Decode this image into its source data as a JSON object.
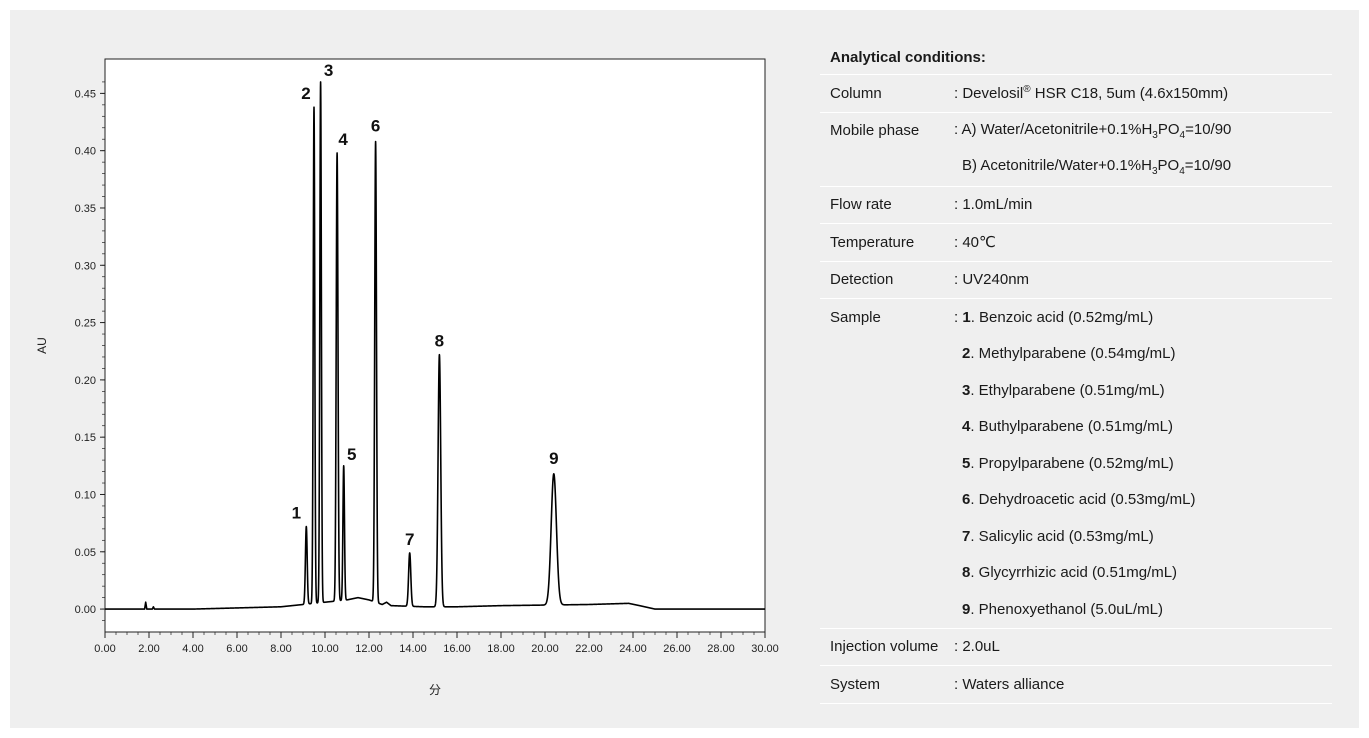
{
  "chart_data": {
    "type": "line",
    "xlabel": "分",
    "ylabel": "AU",
    "xlim": [
      0,
      30
    ],
    "ylim": [
      -0.02,
      0.48
    ],
    "x_ticks": [
      "0.00",
      "2.00",
      "4.00",
      "6.00",
      "8.00",
      "10.00",
      "12.00",
      "14.00",
      "16.00",
      "18.00",
      "20.00",
      "22.00",
      "24.00",
      "26.00",
      "28.00",
      "30.00"
    ],
    "y_ticks": [
      "0.00",
      "0.05",
      "0.10",
      "0.15",
      "0.20",
      "0.25",
      "0.30",
      "0.35",
      "0.40",
      "0.45"
    ],
    "grid": false,
    "line_color": "#000000",
    "peaks": [
      {
        "label": "1",
        "x": 9.15,
        "y": 0.072
      },
      {
        "label": "2",
        "x": 9.5,
        "y": 0.438
      },
      {
        "label": "3",
        "x": 9.8,
        "y": 0.46
      },
      {
        "label": "4",
        "x": 10.55,
        "y": 0.398
      },
      {
        "label": "5",
        "x": 10.85,
        "y": 0.125
      },
      {
        "label": "6",
        "x": 12.3,
        "y": 0.408
      },
      {
        "label": "7",
        "x": 13.85,
        "y": 0.049
      },
      {
        "label": "8",
        "x": 15.2,
        "y": 0.222
      },
      {
        "label": "9",
        "x": 20.4,
        "y": 0.118
      }
    ],
    "baseline": [
      {
        "x": 0,
        "y": 0.0
      },
      {
        "x": 1.8,
        "y": 0.0
      },
      {
        "x": 1.85,
        "y": 0.006
      },
      {
        "x": 1.9,
        "y": 0.0
      },
      {
        "x": 2.15,
        "y": 0.0
      },
      {
        "x": 2.2,
        "y": 0.002
      },
      {
        "x": 2.25,
        "y": 0.0
      },
      {
        "x": 4.0,
        "y": 0.0
      },
      {
        "x": 6.0,
        "y": 0.001
      },
      {
        "x": 8.0,
        "y": 0.002
      },
      {
        "x": 9.0,
        "y": 0.004
      },
      {
        "x": 11.0,
        "y": 0.008
      },
      {
        "x": 11.5,
        "y": 0.01
      },
      {
        "x": 12.0,
        "y": 0.008
      },
      {
        "x": 12.6,
        "y": 0.004
      },
      {
        "x": 12.8,
        "y": 0.006
      },
      {
        "x": 13.0,
        "y": 0.003
      },
      {
        "x": 14.5,
        "y": 0.002
      },
      {
        "x": 16.0,
        "y": 0.002
      },
      {
        "x": 18.0,
        "y": 0.003
      },
      {
        "x": 22.0,
        "y": 0.004
      },
      {
        "x": 23.8,
        "y": 0.005
      },
      {
        "x": 24.3,
        "y": 0.003
      },
      {
        "x": 25.0,
        "y": 0.0
      },
      {
        "x": 30.0,
        "y": 0.0
      }
    ]
  },
  "conditions": {
    "title": "Analytical conditions:",
    "column": {
      "label": "Column",
      "prefix": ": Develosil",
      "reg": "®",
      "suffix": " HSR C18, 5um (4.6x150mm)"
    },
    "mobile_phase": {
      "label": "Mobile phase",
      "a": {
        "pre": ": A) Water/Acetonitrile+0.1%H",
        "s1": "3",
        "mid": "PO",
        "s2": "4",
        "post": "=10/90"
      },
      "b": {
        "pre": "B) Acetonitrile/Water+0.1%H",
        "s1": "3",
        "mid": "PO",
        "s2": "4",
        "post": "=10/90"
      }
    },
    "flow_rate": {
      "label": "Flow rate",
      "value": ": 1.0mL/min"
    },
    "temperature": {
      "label": "Temperature",
      "value": ": 40℃"
    },
    "detection": {
      "label": "Detection",
      "value": ": UV240nm"
    },
    "sample": {
      "label": "Sample",
      "items": [
        {
          "num": "1",
          "text": ". Benzoic acid (0.52mg/mL)"
        },
        {
          "num": "2",
          "text": ". Methylparabene (0.54mg/mL)"
        },
        {
          "num": "3",
          "text": ". Ethylparabene (0.51mg/mL)"
        },
        {
          "num": "4",
          "text": ". Buthylparabene (0.51mg/mL)"
        },
        {
          "num": "5",
          "text": ". Propylparabene (0.52mg/mL)"
        },
        {
          "num": "6",
          "text": ". Dehydroacetic acid (0.53mg/mL)"
        },
        {
          "num": "7",
          "text": ". Salicylic acid (0.53mg/mL)"
        },
        {
          "num": "8",
          "text": ". Glycyrrhizic acid (0.51mg/mL)"
        },
        {
          "num": "9",
          "text": ". Phenoxyethanol (5.0uL/mL)"
        }
      ]
    },
    "injection": {
      "label": "Injection volume",
      "value": ": 2.0uL"
    },
    "system": {
      "label": "System",
      "value": ": Waters alliance"
    }
  }
}
